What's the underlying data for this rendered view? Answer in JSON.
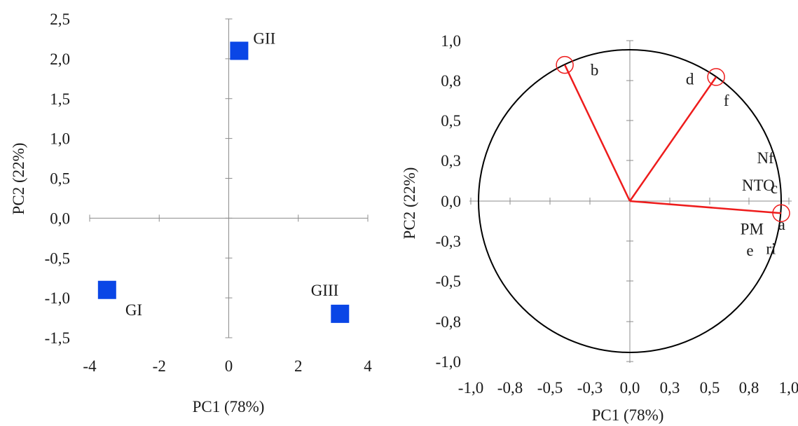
{
  "chart_data": [
    {
      "type": "scatter",
      "xlabel": "PC1 (78%)",
      "ylabel": "PC2 (22%)",
      "xlim": [
        -4,
        4
      ],
      "ylim": [
        -1.5,
        2.5
      ],
      "xticks": [
        -4,
        -2,
        0,
        2,
        4
      ],
      "yticks": [
        2.5,
        2.0,
        1.5,
        1.0,
        0.5,
        0.0,
        -0.5,
        -1.0,
        -1.5
      ],
      "x_tick_labels": [
        "-4",
        "-2",
        "0",
        "2",
        "4"
      ],
      "y_tick_labels": [
        "2,5",
        "2,0",
        "1,5",
        "1,0",
        "0,5",
        "0,0",
        "-0,5",
        "-1,0",
        "-1,5"
      ],
      "marker_color": "#0a46e6",
      "points": [
        {
          "label": "GI",
          "x": -3.5,
          "y": -0.9
        },
        {
          "label": "GII",
          "x": 0.3,
          "y": 2.1
        },
        {
          "label": "GIII",
          "x": 3.2,
          "y": -1.2
        }
      ]
    },
    {
      "type": "scatter",
      "subtype": "correlation-circle",
      "xlabel": "PC1 (78%)",
      "ylabel": "PC2 (22%)",
      "xlim": [
        -1.0,
        1.0
      ],
      "ylim": [
        -1.0,
        1.0
      ],
      "x_tick_labels": [
        "-1,0",
        "-0,8",
        "-0,5",
        "-0,3",
        "0,0",
        "0,3",
        "0,5",
        "0,8",
        "1,0"
      ],
      "y_tick_labels": [
        "1,0",
        "0,8",
        "0,5",
        "0,3",
        "0,0",
        "-0,3",
        "-0,5",
        "-0,8",
        "-1,0"
      ],
      "vector_color": "#ee1c1c",
      "vectors": [
        {
          "x": 1.0,
          "y": -0.08
        },
        {
          "x": -0.43,
          "y": 0.9
        },
        {
          "x": 0.57,
          "y": 0.82
        }
      ],
      "variable_labels": [
        {
          "text": "b",
          "x": -0.26,
          "y": 0.83
        },
        {
          "text": "d",
          "x": 0.37,
          "y": 0.77
        },
        {
          "text": "f",
          "x": 0.62,
          "y": 0.63
        },
        {
          "text": "Nf",
          "x": 0.84,
          "y": 0.25
        },
        {
          "text": "NTO",
          "x": 0.74,
          "y": 0.07
        },
        {
          "text": "c",
          "x": 0.93,
          "y": 0.05
        },
        {
          "text": "a",
          "x": 0.98,
          "y": -0.19
        },
        {
          "text": "PM",
          "x": 0.73,
          "y": -0.22
        },
        {
          "text": "e",
          "x": 0.77,
          "y": -0.36
        },
        {
          "text": "ri",
          "x": 0.9,
          "y": -0.35
        }
      ]
    }
  ]
}
